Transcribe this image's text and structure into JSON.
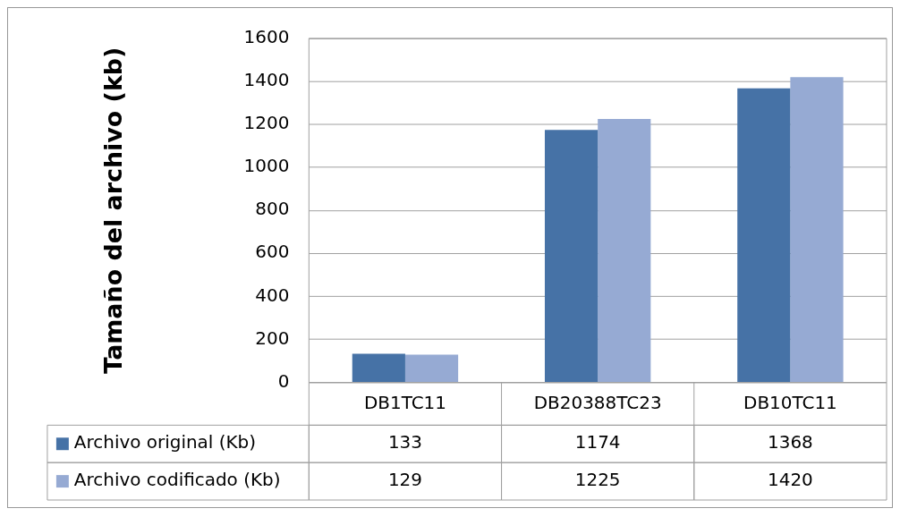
{
  "chart_data": {
    "type": "bar",
    "ylabel": "Tamaño del archivo (kb)",
    "categories": [
      "DB1TC11",
      "DB20388TC23",
      "DB10TC11"
    ],
    "series": [
      {
        "name": "Archivo original (Kb)",
        "color": "#4672a6",
        "values": [
          133,
          1174,
          1368
        ]
      },
      {
        "name": "Archivo codificado (Kb)",
        "color": "#96aad3",
        "values": [
          129,
          1225,
          1420
        ]
      }
    ],
    "ylim": [
      0,
      1600
    ],
    "yticks": [
      0,
      200,
      400,
      600,
      800,
      1000,
      1200,
      1400,
      1600
    ],
    "grid": "y",
    "legend": "bottom",
    "data_labels": true
  }
}
